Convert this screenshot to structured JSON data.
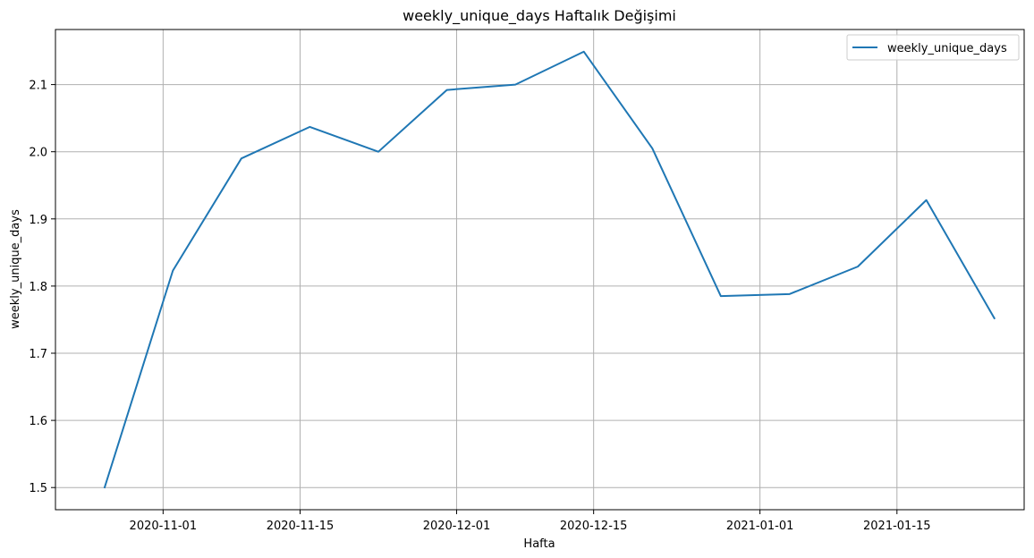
{
  "chart_data": {
    "type": "line",
    "title": "weekly_unique_days Haftalık Değişimi",
    "xlabel": "Hafta",
    "ylabel": "weekly_unique_days",
    "x_ticks": [
      {
        "date": "2020-11-01",
        "label": "2020-11-01"
      },
      {
        "date": "2020-11-15",
        "label": "2020-11-15"
      },
      {
        "date": "2020-12-01",
        "label": "2020-12-01"
      },
      {
        "date": "2020-12-15",
        "label": "2020-12-15"
      },
      {
        "date": "2021-01-01",
        "label": "2021-01-01"
      },
      {
        "date": "2021-01-15",
        "label": "2021-01-15"
      }
    ],
    "y_ticks": [
      1.5,
      1.6,
      1.7,
      1.8,
      1.9,
      2.0,
      2.1
    ],
    "y_tick_labels": [
      "1.5",
      "1.6",
      "1.7",
      "1.8",
      "1.9",
      "2.0",
      "2.1"
    ],
    "xlim": [
      "2020-10-21",
      "2021-01-28"
    ],
    "ylim": [
      1.467,
      2.182
    ],
    "grid": true,
    "legend_position": "top-right",
    "series": [
      {
        "name": "weekly_unique_days",
        "color": "#1f77b4",
        "points": [
          {
            "x": "2020-10-26",
            "y": 1.499
          },
          {
            "x": "2020-11-02",
            "y": 1.823
          },
          {
            "x": "2020-11-09",
            "y": 1.99
          },
          {
            "x": "2020-11-16",
            "y": 2.037
          },
          {
            "x": "2020-11-23",
            "y": 2.0
          },
          {
            "x": "2020-11-30",
            "y": 2.092
          },
          {
            "x": "2020-12-07",
            "y": 2.1
          },
          {
            "x": "2020-12-14",
            "y": 2.149
          },
          {
            "x": "2020-12-21",
            "y": 2.005
          },
          {
            "x": "2020-12-28",
            "y": 1.785
          },
          {
            "x": "2021-01-04",
            "y": 1.788
          },
          {
            "x": "2021-01-11",
            "y": 1.829
          },
          {
            "x": "2021-01-18",
            "y": 1.928
          },
          {
            "x": "2021-01-25",
            "y": 1.751
          }
        ]
      }
    ]
  }
}
